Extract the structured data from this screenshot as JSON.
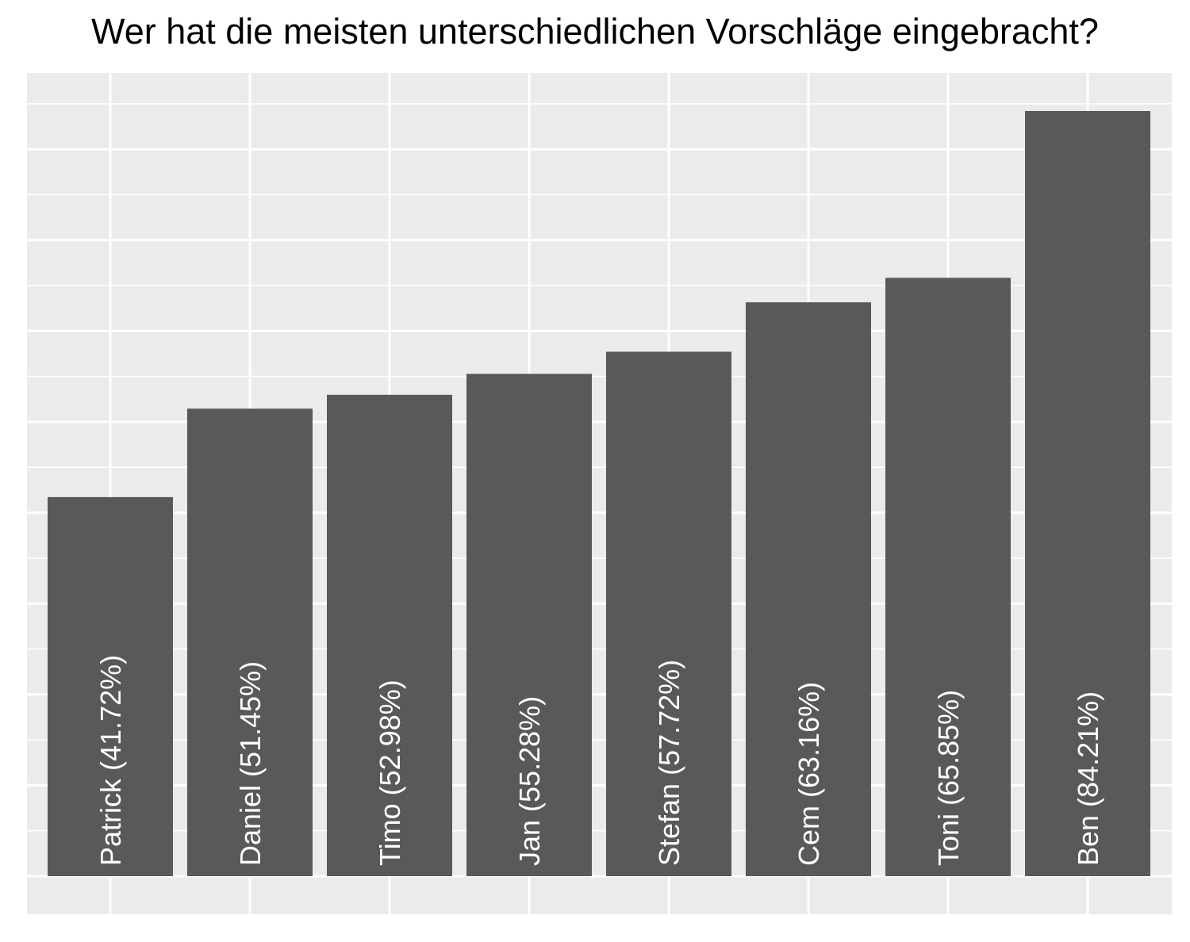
{
  "colors": {
    "panel_background": "#ebebeb",
    "grid_line": "#ffffff",
    "bar_fill": "#595959",
    "label_text": "#ffffff",
    "title_text": "#000000"
  },
  "chart_data": {
    "type": "bar",
    "title": "Wer hat die meisten unterschiedlichen Vorschläge eingebracht?",
    "xlabel": "",
    "ylabel": "",
    "ylim": [
      0,
      88.4
    ],
    "grid": true,
    "legend": "none",
    "axis_labels_shown": false,
    "categories": [
      "Patrick",
      "Daniel",
      "Timo",
      "Jan",
      "Stefan",
      "Cem",
      "Toni",
      "Ben"
    ],
    "values": [
      41.72,
      51.45,
      52.98,
      55.28,
      57.72,
      63.16,
      65.85,
      84.21
    ],
    "data_labels": [
      "Patrick (41.72%)",
      "Daniel (51.45%)",
      "Timo (52.98%)",
      "Jan (55.28%)",
      "Stefan (57.72%)",
      "Cem (63.16%)",
      "Toni (65.85%)",
      "Ben (84.21%)"
    ]
  }
}
